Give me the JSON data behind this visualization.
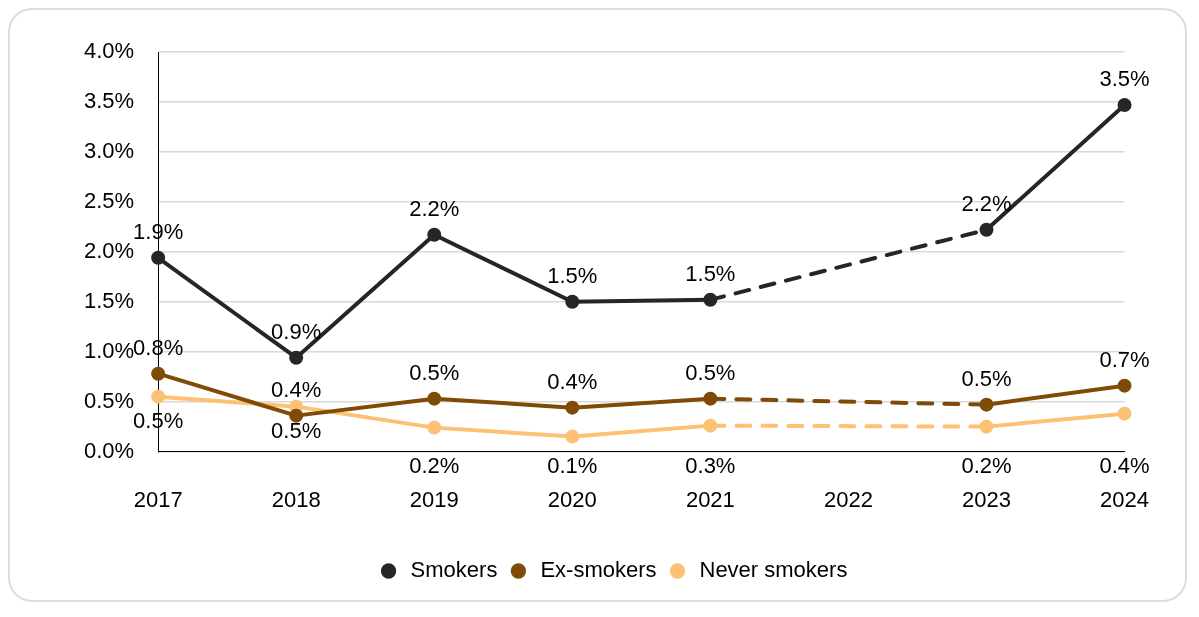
{
  "chart_data": {
    "type": "line",
    "categories": [
      "2017",
      "2018",
      "2019",
      "2020",
      "2021",
      "2022",
      "2023",
      "2024"
    ],
    "series": [
      {
        "name": "Smokers",
        "color": "#262626",
        "values": [
          1.94,
          0.94,
          2.17,
          1.5,
          1.52,
          null,
          2.22,
          3.47
        ],
        "value_labels": [
          "1.9%",
          "0.9%",
          "2.2%",
          "1.5%",
          "1.5%",
          null,
          "2.2%",
          "3.5%"
        ]
      },
      {
        "name": "Ex-smokers",
        "color": "#7f4b06",
        "values": [
          0.78,
          0.36,
          0.53,
          0.44,
          0.53,
          null,
          0.47,
          0.66
        ],
        "value_labels": [
          "0.8%",
          "0.4%",
          "0.5%",
          "0.4%",
          "0.5%",
          null,
          "0.5%",
          "0.7%"
        ]
      },
      {
        "name": "Never smokers",
        "color": "#fcc173",
        "values": [
          0.55,
          0.45,
          0.24,
          0.15,
          0.26,
          null,
          0.25,
          0.38
        ],
        "value_labels": [
          "0.5%",
          "0.5%",
          "0.2%",
          "0.1%",
          "0.3%",
          null,
          "0.2%",
          "0.4%"
        ]
      }
    ],
    "ylim": [
      0,
      4
    ],
    "yticks": [
      {
        "value": 0,
        "label": "0.0%"
      },
      {
        "value": 0.5,
        "label": "0.5%"
      },
      {
        "value": 1,
        "label": "1.0%"
      },
      {
        "value": 1.5,
        "label": "1.5%"
      },
      {
        "value": 2,
        "label": "2.0%"
      },
      {
        "value": 2.5,
        "label": "2.5%"
      },
      {
        "value": 3,
        "label": "3.0%"
      },
      {
        "value": 3.5,
        "label": "3.5%"
      },
      {
        "value": 4,
        "label": "4.0%"
      }
    ],
    "grid": "y",
    "legend": "bottom",
    "marker": "circle",
    "line_style": "solid"
  }
}
